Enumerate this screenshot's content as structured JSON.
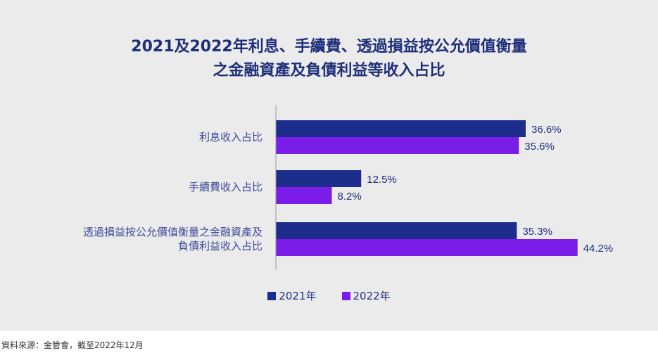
{
  "chart_data": {
    "type": "bar",
    "orientation": "horizontal",
    "title_lines": [
      "2021及2022年利息、手續費、透過損益按公允價值衡量",
      "之金融資產及負債利益等收入占比"
    ],
    "categories": [
      [
        "利息收入占比"
      ],
      [
        "手續費收入占比"
      ],
      [
        "透過損益按公允價值衡量之金融資產及",
        "負債利益收入占比"
      ]
    ],
    "series": [
      {
        "name": "2021年",
        "values": [
          36.6,
          12.5,
          35.3
        ],
        "labels": [
          "36.6%",
          "12.5%",
          "35.3%"
        ],
        "color": "#1c2d8c"
      },
      {
        "name": "2022年",
        "values": [
          35.6,
          8.2,
          44.2
        ],
        "labels": [
          "35.6%",
          "8.2%",
          "44.2%"
        ],
        "color": "#7a1de8"
      }
    ],
    "xlim": [
      0,
      50
    ],
    "grid": false,
    "legend_position": "bottom-center"
  },
  "source_note": "資料來源：金管會，截至2022年12月"
}
